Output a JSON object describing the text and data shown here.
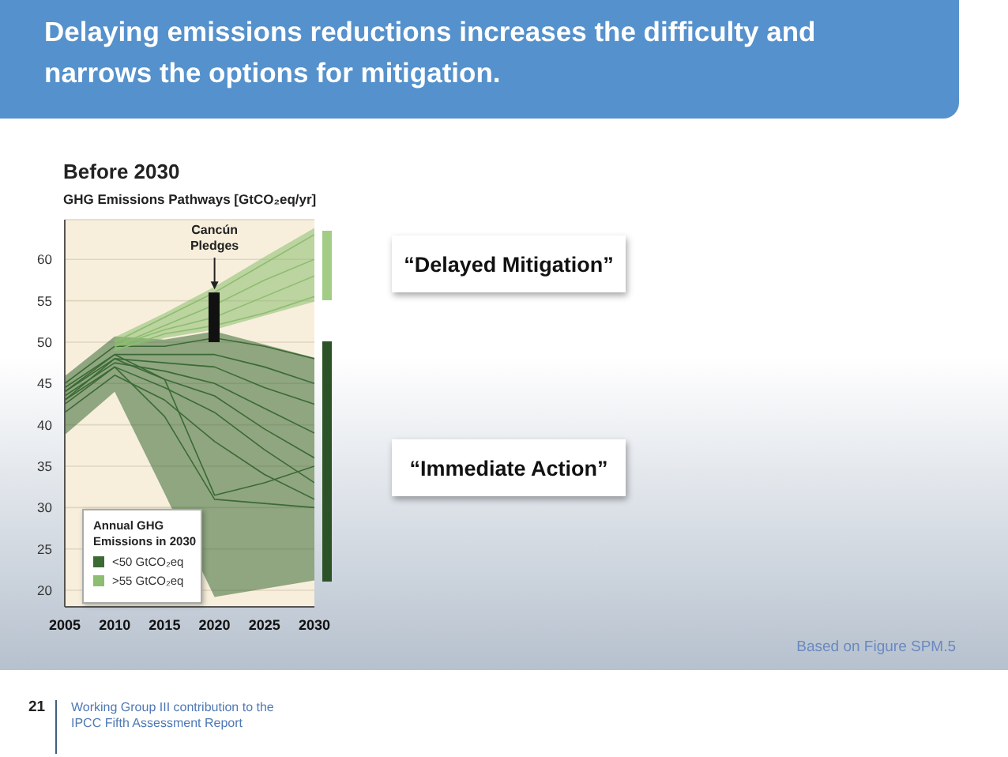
{
  "chart_data": {
    "type": "line",
    "title": "Delaying emissions reductions increases the difficulty and narrows the options for mitigation.",
    "subtitle": "Before 2030",
    "ylabel": "GHG Emissions Pathways [GtCO₂eq/yr]",
    "legend_title": "Annual GHG Emissions in 2030",
    "x": [
      2005,
      2010,
      2015,
      2020,
      2025,
      2030
    ],
    "series": [
      {
        "name": "<50 GtCO₂eq",
        "color": "#3b6a34",
        "values": [
          45,
          49.5,
          49.5,
          50.5,
          49.5,
          48
        ],
        "lower": [
          38.8,
          44,
          31.7,
          19.2,
          20.2,
          21.2
        ],
        "upper": [
          45.9,
          50.7,
          50.3,
          51.3,
          49.7,
          48.1
        ]
      },
      {
        "color": "#3b6a34",
        "values": [
          44.5,
          48.5,
          48.5,
          48.5,
          47,
          45
        ]
      },
      {
        "color": "#3b6a34",
        "values": [
          44,
          48,
          47.5,
          47,
          44.5,
          42.5
        ]
      },
      {
        "color": "#3b6a34",
        "values": [
          43.5,
          47.5,
          46.5,
          45,
          42,
          39
        ]
      },
      {
        "color": "#3b6a34",
        "values": [
          43,
          48,
          45.5,
          43.5,
          39.5,
          36
        ]
      },
      {
        "color": "#3b6a34",
        "values": [
          42.5,
          47,
          44.5,
          41.5,
          37,
          33
        ]
      },
      {
        "color": "#3b6a34",
        "values": [
          44,
          48.5,
          45.5,
          31.5,
          33,
          35
        ]
      },
      {
        "color": "#3b6a34",
        "values": [
          43,
          47,
          41,
          31,
          30.5,
          30
        ]
      },
      {
        "color": "#3b6a34",
        "values": [
          41.5,
          46,
          43,
          38,
          34,
          31
        ]
      },
      {
        "name": ">55 GtCO₂eq",
        "color": "#8dbd70",
        "values": [
          null,
          50,
          53,
          56,
          59.5,
          63
        ],
        "lower": [
          null,
          49,
          50.5,
          51.5,
          53.2,
          54.9
        ],
        "upper": [
          null,
          50.6,
          53.5,
          56.7,
          60.3,
          63.8
        ]
      },
      {
        "color": "#8dbd70",
        "values": [
          null,
          49.5,
          52,
          54.5,
          57.5,
          60
        ]
      },
      {
        "color": "#8dbd70",
        "values": [
          null,
          49.5,
          51.5,
          53,
          55.5,
          58
        ]
      },
      {
        "color": "#8dbd70",
        "values": [
          null,
          49,
          51,
          52,
          53.5,
          55.5
        ]
      },
      {
        "type": "bar",
        "color": "#111111",
        "x": [
          2020
        ],
        "base": [
          50
        ],
        "values": [
          6
        ]
      }
    ],
    "xlim": [
      2005,
      2030
    ],
    "xticks": [
      2005,
      2010,
      2015,
      2020,
      2025,
      2030
    ],
    "ylim": [
      18,
      64.8
    ],
    "yticks": [
      20,
      25,
      30,
      35,
      40,
      45,
      50,
      55,
      60
    ],
    "grid": "y",
    "legend": "bottom left",
    "annotations": [
      {
        "text": "Cancún Pledges",
        "x": 2020,
        "y": 56
      },
      "“Delayed Mitigation”",
      "“Immediate Action”",
      "Based on Figure SPM.5",
      "21",
      "Working Group III contribution to the IPCC Fifth Assessment Report"
    ]
  }
}
